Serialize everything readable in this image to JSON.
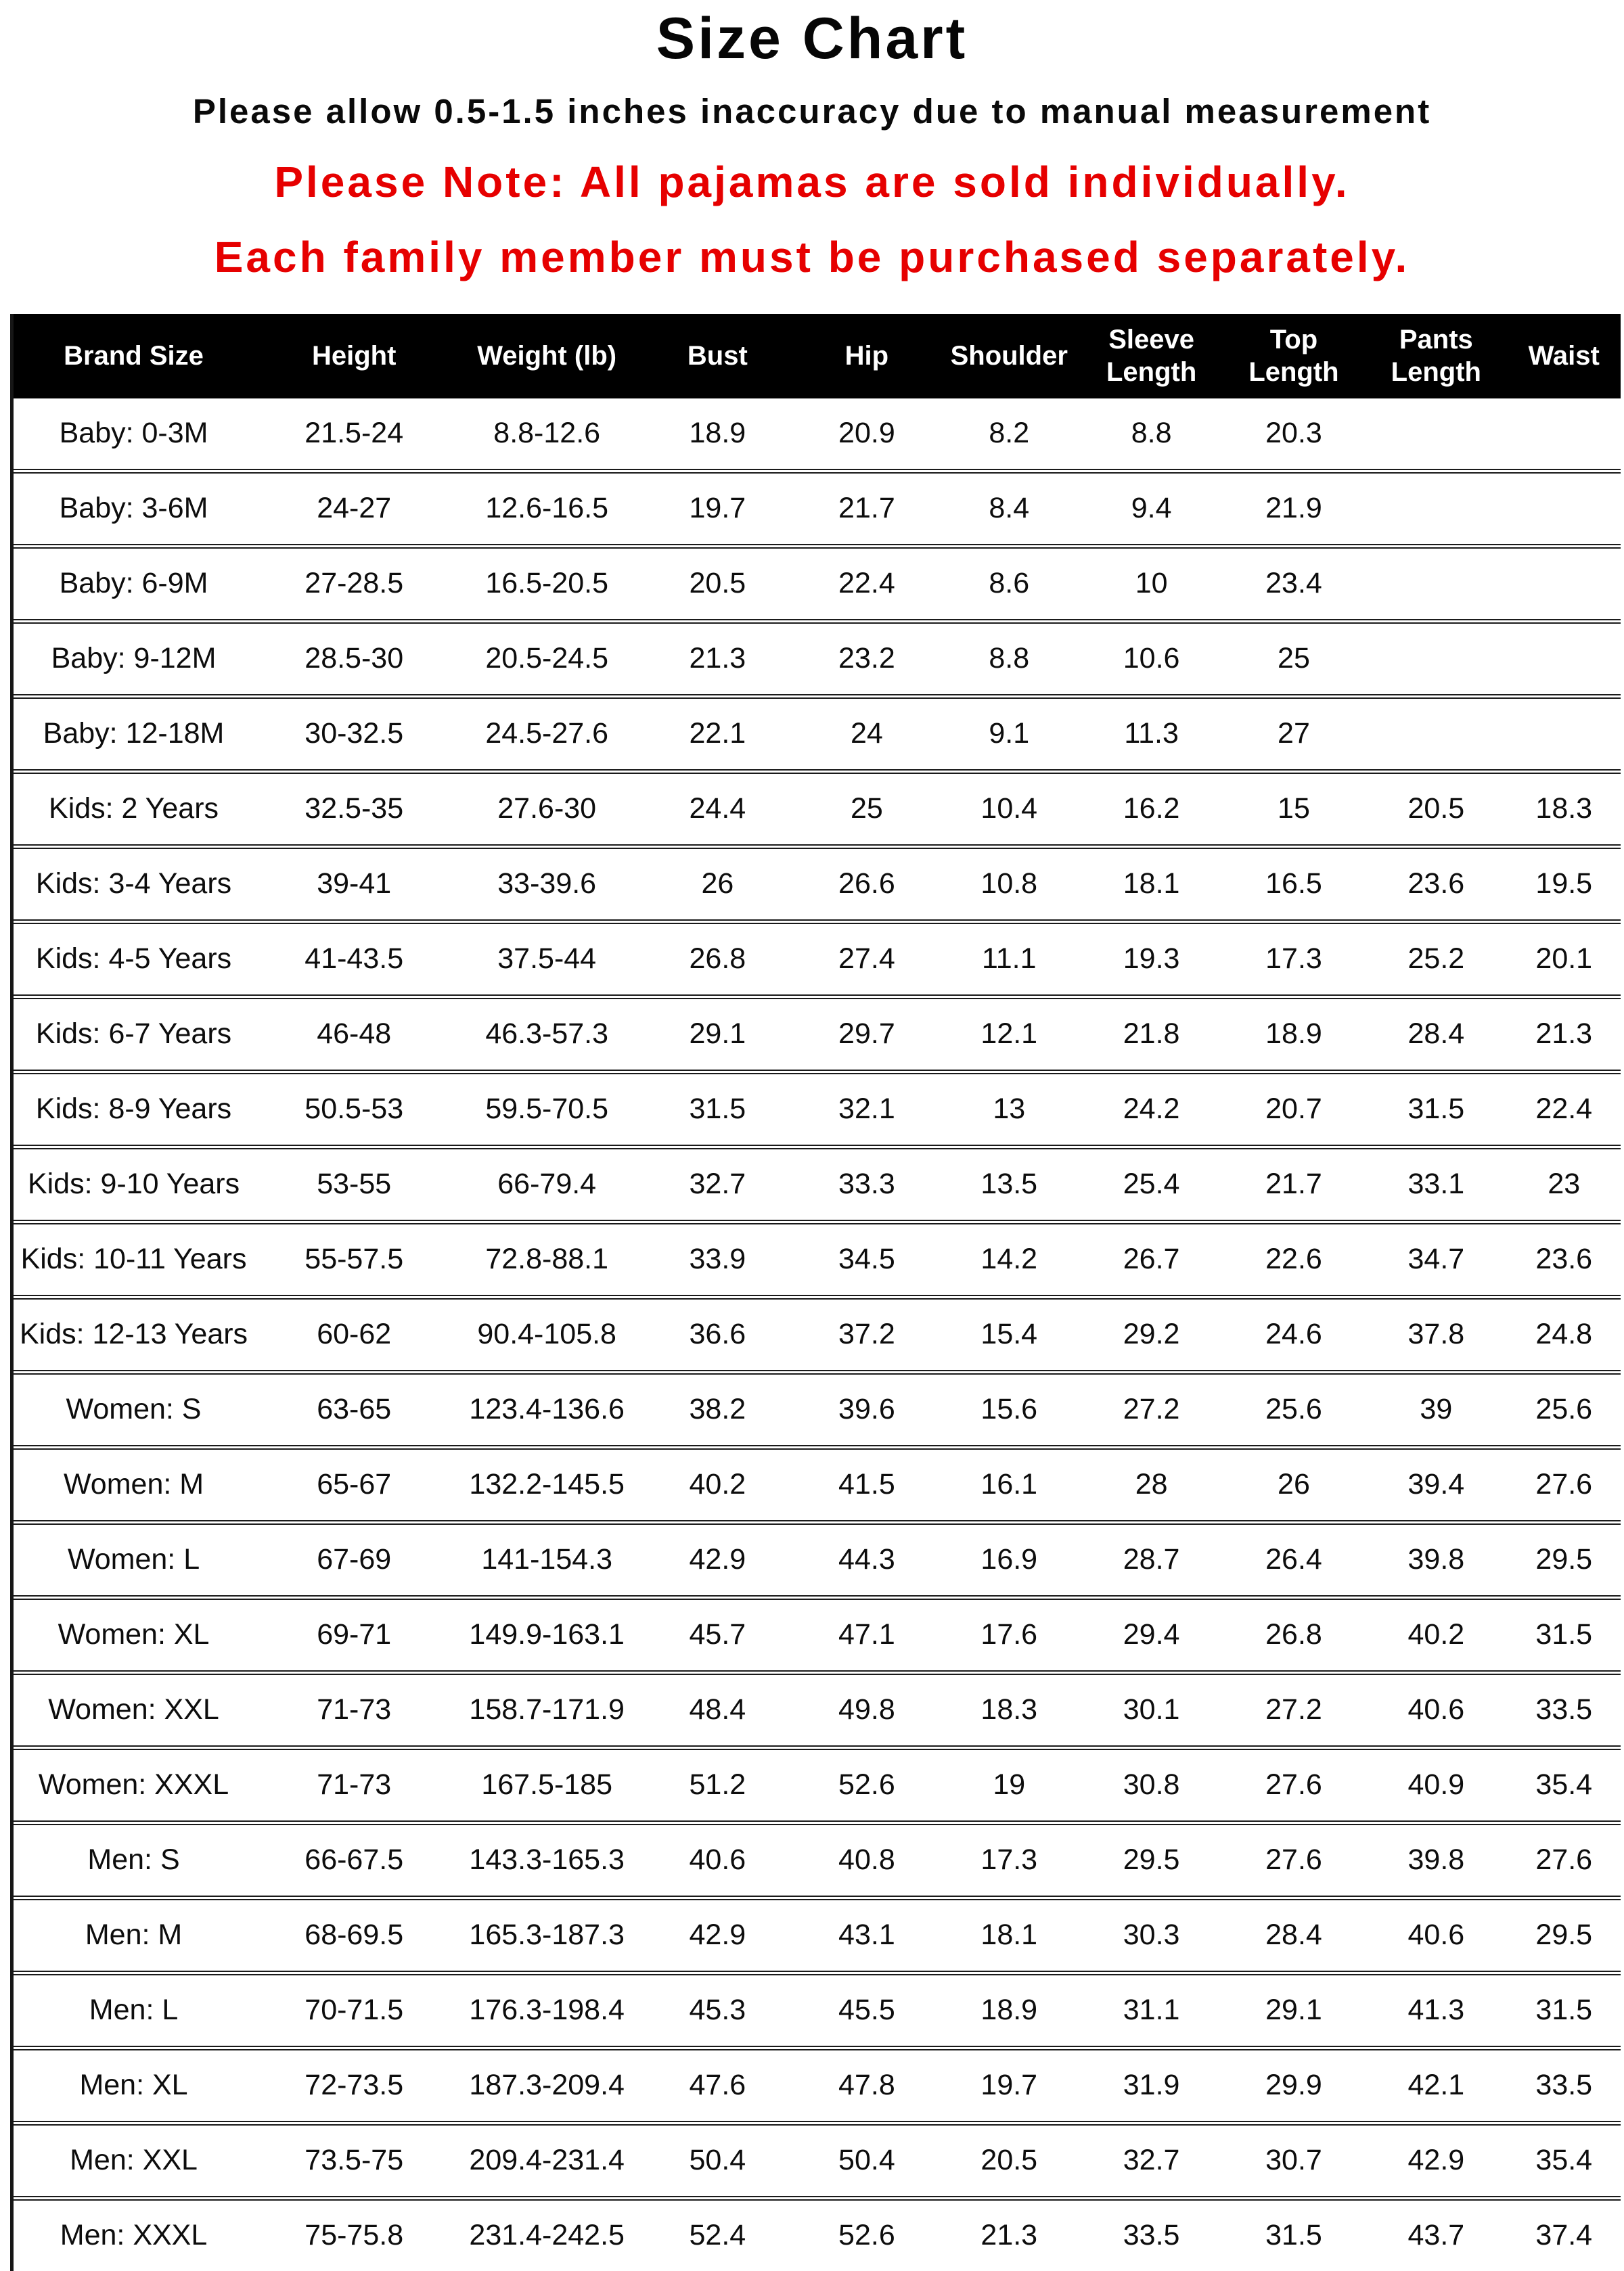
{
  "page": {
    "title": "Size Chart",
    "subtitle": "Please allow 0.5-1.5 inches inaccuracy due to manual measurement",
    "note_line1": "Please Note: All pajamas are sold individually.",
    "note_line2": "Each family member must be purchased separately.",
    "note_color": "#e60000",
    "header_bg": "#000000",
    "header_text_color": "#ffffff"
  },
  "table": {
    "columns": [
      "Brand Size",
      "Height",
      "Weight (lb)",
      "Bust",
      "Hip",
      "Shoulder",
      "Sleeve Length",
      "Top Length",
      "Pants Length",
      "Waist"
    ],
    "rows": [
      [
        "Baby: 0-3M",
        "21.5-24",
        "8.8-12.6",
        "18.9",
        "20.9",
        "8.2",
        "8.8",
        "20.3",
        "",
        ""
      ],
      [
        "Baby: 3-6M",
        "24-27",
        "12.6-16.5",
        "19.7",
        "21.7",
        "8.4",
        "9.4",
        "21.9",
        "",
        ""
      ],
      [
        "Baby: 6-9M",
        "27-28.5",
        "16.5-20.5",
        "20.5",
        "22.4",
        "8.6",
        "10",
        "23.4",
        "",
        ""
      ],
      [
        "Baby: 9-12M",
        "28.5-30",
        "20.5-24.5",
        "21.3",
        "23.2",
        "8.8",
        "10.6",
        "25",
        "",
        ""
      ],
      [
        "Baby: 12-18M",
        "30-32.5",
        "24.5-27.6",
        "22.1",
        "24",
        "9.1",
        "11.3",
        "27",
        "",
        ""
      ],
      [
        "Kids: 2 Years",
        "32.5-35",
        "27.6-30",
        "24.4",
        "25",
        "10.4",
        "16.2",
        "15",
        "20.5",
        "18.3"
      ],
      [
        "Kids: 3-4 Years",
        "39-41",
        "33-39.6",
        "26",
        "26.6",
        "10.8",
        "18.1",
        "16.5",
        "23.6",
        "19.5"
      ],
      [
        "Kids: 4-5 Years",
        "41-43.5",
        "37.5-44",
        "26.8",
        "27.4",
        "11.1",
        "19.3",
        "17.3",
        "25.2",
        "20.1"
      ],
      [
        "Kids: 6-7 Years",
        "46-48",
        "46.3-57.3",
        "29.1",
        "29.7",
        "12.1",
        "21.8",
        "18.9",
        "28.4",
        "21.3"
      ],
      [
        "Kids: 8-9 Years",
        "50.5-53",
        "59.5-70.5",
        "31.5",
        "32.1",
        "13",
        "24.2",
        "20.7",
        "31.5",
        "22.4"
      ],
      [
        "Kids: 9-10 Years",
        "53-55",
        "66-79.4",
        "32.7",
        "33.3",
        "13.5",
        "25.4",
        "21.7",
        "33.1",
        "23"
      ],
      [
        "Kids: 10-11 Years",
        "55-57.5",
        "72.8-88.1",
        "33.9",
        "34.5",
        "14.2",
        "26.7",
        "22.6",
        "34.7",
        "23.6"
      ],
      [
        "Kids: 12-13 Years",
        "60-62",
        "90.4-105.8",
        "36.6",
        "37.2",
        "15.4",
        "29.2",
        "24.6",
        "37.8",
        "24.8"
      ],
      [
        "Women: S",
        "63-65",
        "123.4-136.6",
        "38.2",
        "39.6",
        "15.6",
        "27.2",
        "25.6",
        "39",
        "25.6"
      ],
      [
        "Women: M",
        "65-67",
        "132.2-145.5",
        "40.2",
        "41.5",
        "16.1",
        "28",
        "26",
        "39.4",
        "27.6"
      ],
      [
        "Women: L",
        "67-69",
        "141-154.3",
        "42.9",
        "44.3",
        "16.9",
        "28.7",
        "26.4",
        "39.8",
        "29.5"
      ],
      [
        "Women: XL",
        "69-71",
        "149.9-163.1",
        "45.7",
        "47.1",
        "17.6",
        "29.4",
        "26.8",
        "40.2",
        "31.5"
      ],
      [
        "Women: XXL",
        "71-73",
        "158.7-171.9",
        "48.4",
        "49.8",
        "18.3",
        "30.1",
        "27.2",
        "40.6",
        "33.5"
      ],
      [
        "Women: XXXL",
        "71-73",
        "167.5-185",
        "51.2",
        "52.6",
        "19",
        "30.8",
        "27.6",
        "40.9",
        "35.4"
      ],
      [
        "Men: S",
        "66-67.5",
        "143.3-165.3",
        "40.6",
        "40.8",
        "17.3",
        "29.5",
        "27.6",
        "39.8",
        "27.6"
      ],
      [
        "Men: M",
        "68-69.5",
        "165.3-187.3",
        "42.9",
        "43.1",
        "18.1",
        "30.3",
        "28.4",
        "40.6",
        "29.5"
      ],
      [
        "Men: L",
        "70-71.5",
        "176.3-198.4",
        "45.3",
        "45.5",
        "18.9",
        "31.1",
        "29.1",
        "41.3",
        "31.5"
      ],
      [
        "Men: XL",
        "72-73.5",
        "187.3-209.4",
        "47.6",
        "47.8",
        "19.7",
        "31.9",
        "29.9",
        "42.1",
        "33.5"
      ],
      [
        "Men: XXL",
        "73.5-75",
        "209.4-231.4",
        "50.4",
        "50.4",
        "20.5",
        "32.7",
        "30.7",
        "42.9",
        "35.4"
      ],
      [
        "Men: XXXL",
        "75-75.8",
        "231.4-242.5",
        "52.4",
        "52.6",
        "21.3",
        "33.5",
        "31.5",
        "43.7",
        "37.4"
      ]
    ]
  }
}
